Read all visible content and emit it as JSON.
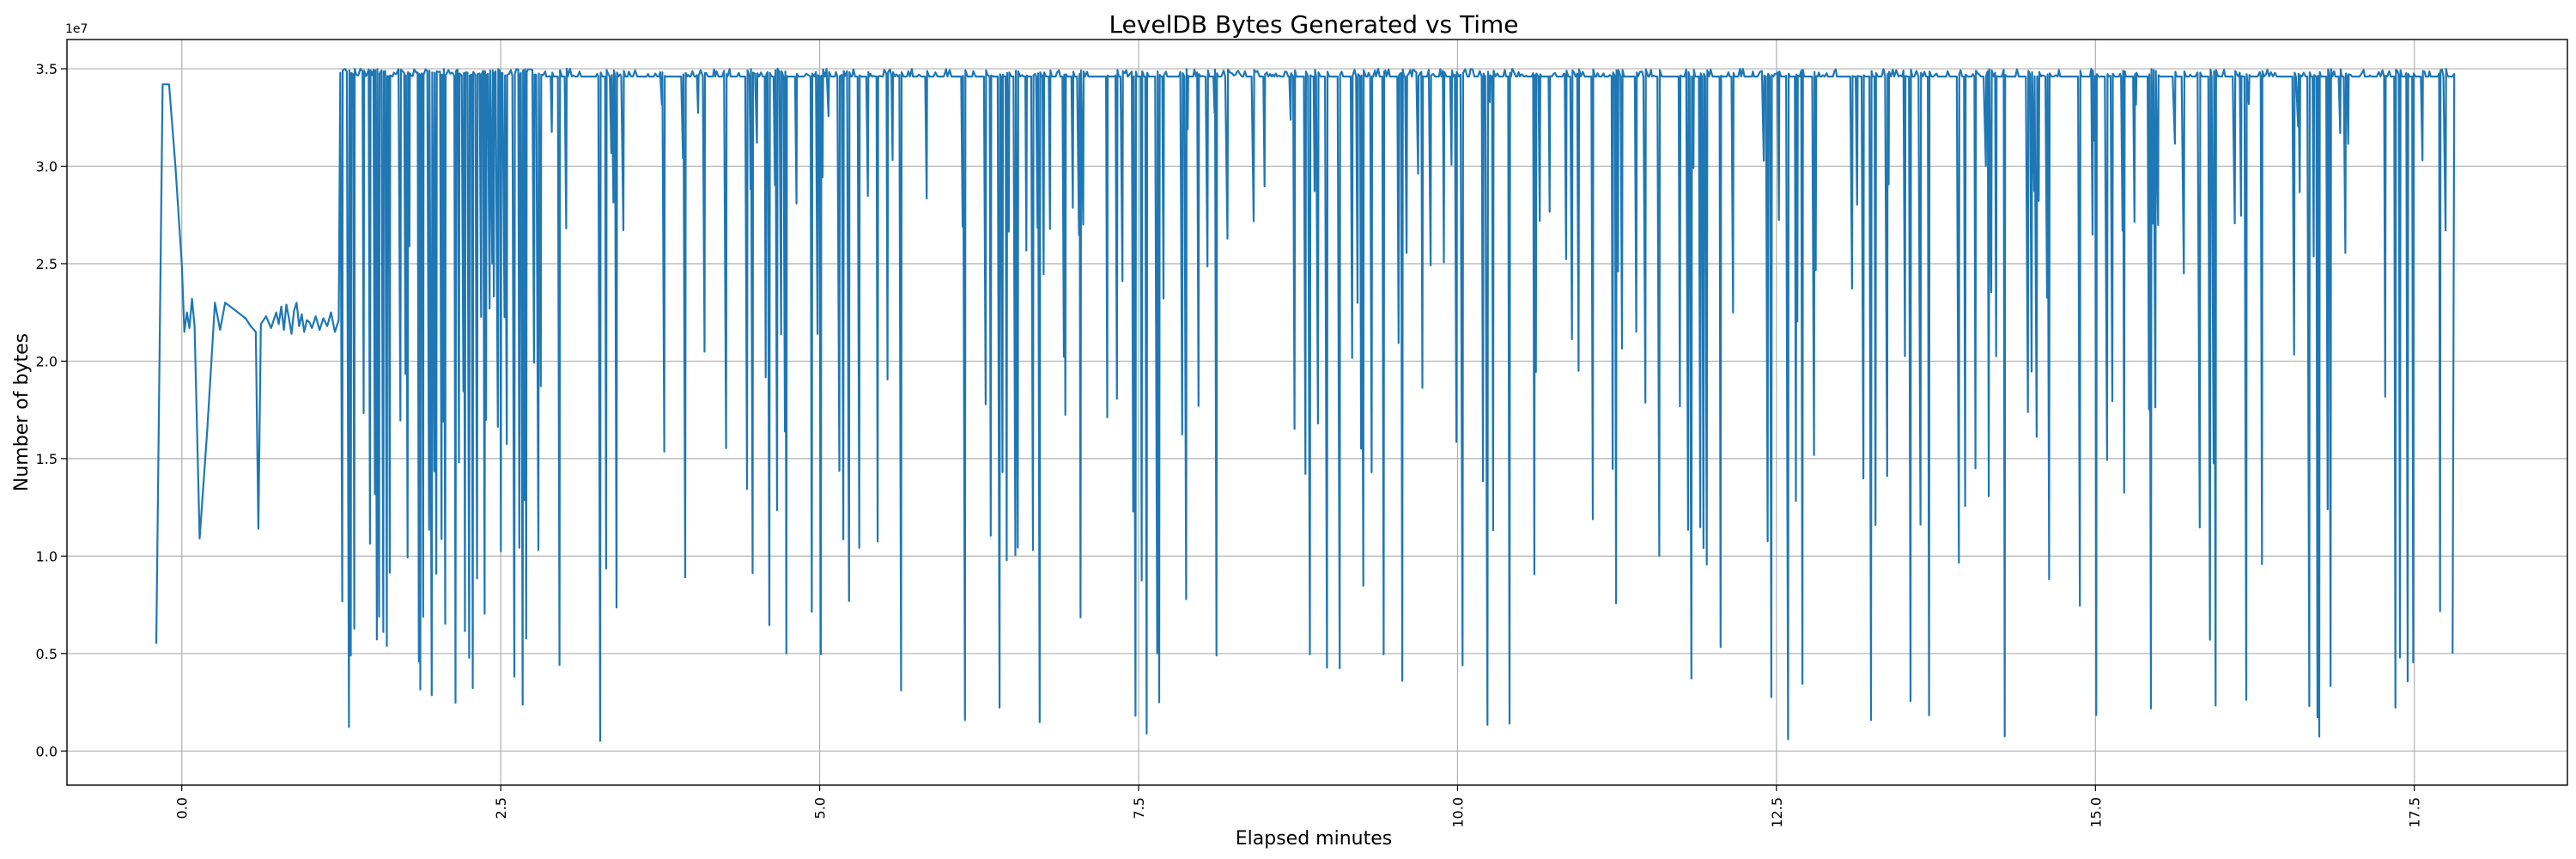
{
  "chart_data": {
    "type": "line",
    "title": "LevelDB Bytes Generated vs Time",
    "xlabel": "Elapsed minutes",
    "ylabel": "Number of bytes",
    "y_offset_label": "1e7",
    "xlim": [
      -0.9,
      18.7
    ],
    "ylim": [
      -1750000,
      36500000
    ],
    "x_ticks": [
      0,
      2.5,
      5,
      7.5,
      10,
      12.5,
      15,
      17.5
    ],
    "x_tick_labels": [
      "0.0",
      "2.5",
      "5.0",
      "7.5",
      "10.0",
      "12.5",
      "15.0",
      "17.5"
    ],
    "x_tick_rotation": -90,
    "y_ticks": [
      0,
      5000000,
      10000000,
      15000000,
      20000000,
      25000000,
      30000000,
      35000000
    ],
    "y_tick_labels": [
      "0.0",
      "0.5",
      "1.0",
      "1.5",
      "2.0",
      "2.5",
      "3.0",
      "3.5"
    ],
    "grid": true,
    "color": "#1f77b4",
    "series": [
      {
        "x": [
          -0.2,
          -0.15,
          -0.1,
          -0.05,
          0.0,
          0.02,
          0.04,
          0.06,
          0.08,
          0.1,
          0.14,
          0.2,
          0.26,
          0.3,
          0.34,
          0.38,
          0.42,
          0.46,
          0.5,
          0.54,
          0.58,
          0.6,
          0.62,
          0.66,
          0.7,
          0.74,
          0.76,
          0.78,
          0.8,
          0.82,
          0.84,
          0.86,
          0.88,
          0.9,
          0.92,
          0.94,
          0.96,
          0.98,
          1.0,
          1.02,
          1.05,
          1.08,
          1.11,
          1.14,
          1.17,
          1.2,
          1.23
        ],
        "y": [
          5500000,
          34200000,
          34200000,
          30000000,
          25000000,
          21500000,
          22500000,
          21700000,
          23200000,
          21800000,
          10900000,
          16500000,
          23000000,
          21600000,
          23000000,
          22800000,
          22600000,
          22400000,
          22200000,
          21800000,
          21500000,
          11400000,
          21900000,
          22300000,
          21700000,
          22500000,
          21900000,
          22800000,
          21600000,
          22900000,
          22200000,
          21400000,
          22600000,
          23000000,
          21800000,
          22400000,
          21500000,
          22100000,
          22000000,
          21700000,
          22300000,
          21600000,
          22200000,
          21800000,
          22500000,
          21500000,
          22100000
        ]
      }
    ],
    "oscillation": {
      "x_start": 1.0,
      "x_end": 17.8,
      "ceiling": 34600000,
      "upper": 35000000,
      "floor": 300000,
      "step_minutes": 0.0125
    }
  }
}
